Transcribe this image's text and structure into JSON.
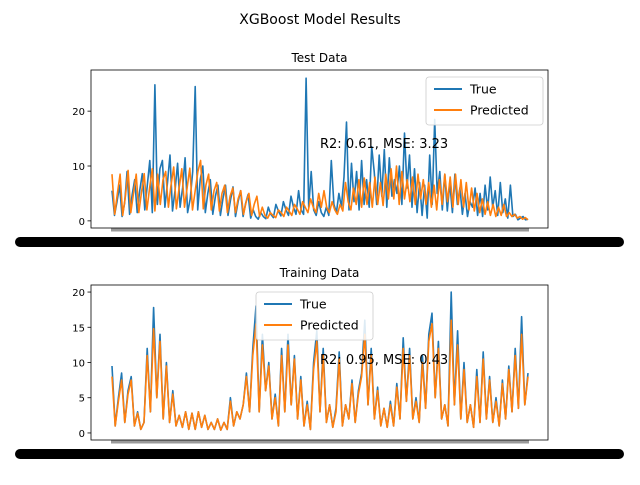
{
  "figure": {
    "suptitle": "XGBoost Model Results"
  },
  "colors": {
    "true": "#1f77b4",
    "predicted": "#ff7f0e"
  },
  "chart_data": [
    {
      "type": "line",
      "title": "Test Data",
      "xlabel": "",
      "ylabel": "",
      "ylim": [
        -1.3,
        27.5
      ],
      "yticks": [
        0,
        10,
        20
      ],
      "grid": false,
      "legend": "upper right",
      "annotation": "R2: 0.61, MSE: 3.23",
      "series": [
        {
          "name": "True",
          "color_key": "true",
          "values": [
            5.5,
            1.0,
            3.5,
            6.5,
            0.8,
            3.2,
            9.0,
            1.2,
            4.8,
            7.5,
            1.5,
            5.5,
            8.6,
            2.0,
            6.5,
            11.0,
            1.5,
            24.8,
            3.0,
            9.5,
            11.0,
            2.5,
            7.0,
            12.0,
            1.8,
            5.5,
            10.5,
            2.5,
            6.0,
            11.5,
            1.5,
            4.0,
            9.0,
            24.5,
            2.0,
            7.5,
            10.0,
            1.5,
            5.0,
            7.5,
            1.2,
            4.5,
            6.5,
            1.0,
            4.0,
            6.5,
            1.0,
            3.8,
            6.2,
            0.8,
            3.5,
            5.5,
            0.8,
            3.2,
            4.8,
            0.5,
            2.0,
            0.8,
            0.3,
            1.5,
            0.8,
            0.4,
            2.5,
            1.2,
            0.6,
            3.0,
            1.8,
            0.9,
            3.5,
            2.0,
            1.0,
            4.5,
            2.5,
            1.2,
            5.5,
            2.0,
            1.2,
            26.0,
            2.5,
            9.0,
            2.0,
            1.0,
            3.5,
            1.5,
            0.8,
            2.5,
            1.0,
            11.0,
            3.0,
            1.5,
            5.0,
            2.5,
            8.0,
            18.0,
            2.0,
            10.5,
            3.5,
            9.0,
            2.0,
            11.0,
            3.0,
            7.5,
            2.5,
            13.5,
            9.0,
            3.0,
            12.0,
            4.5,
            13.0,
            2.5,
            11.5,
            4.5,
            7.5,
            5.0,
            10.0,
            3.0,
            16.0,
            6.0,
            12.0,
            2.5,
            9.5,
            1.5,
            7.0,
            1.0,
            6.5,
            0.5,
            12.0,
            3.0,
            18.5,
            5.0,
            9.0,
            2.0,
            8.5,
            1.8,
            7.0,
            1.5,
            8.5,
            3.0,
            6.0,
            1.2,
            5.0,
            0.8,
            3.5,
            2.5,
            6.0,
            1.0,
            5.0,
            0.8,
            6.5,
            2.0,
            8.0,
            2.5,
            5.5,
            1.0,
            7.0,
            1.5,
            4.0,
            0.5,
            6.5,
            0.8,
            1.2,
            0.2,
            0.5,
            0.8,
            0.2,
            0.3
          ]
        },
        {
          "name": "Predicted",
          "color_key": "predicted",
          "values": [
            8.5,
            1.2,
            5.0,
            8.5,
            1.0,
            4.5,
            9.2,
            1.5,
            5.0,
            8.5,
            1.5,
            5.2,
            8.6,
            2.0,
            6.0,
            9.5,
            1.8,
            8.5,
            3.0,
            7.5,
            9.0,
            2.5,
            6.5,
            9.8,
            2.2,
            6.0,
            9.5,
            2.5,
            6.0,
            9.6,
            2.0,
            5.5,
            9.0,
            11.0,
            2.2,
            6.5,
            8.5,
            2.0,
            5.5,
            7.0,
            1.8,
            5.0,
            6.5,
            1.5,
            4.5,
            6.0,
            1.5,
            4.0,
            5.5,
            1.2,
            3.5,
            5.0,
            1.0,
            3.0,
            4.5,
            0.8,
            2.5,
            1.0,
            0.5,
            1.5,
            1.0,
            0.6,
            2.0,
            1.5,
            0.8,
            2.5,
            1.8,
            1.0,
            3.0,
            2.2,
            1.2,
            3.5,
            2.5,
            1.5,
            4.0,
            2.5,
            1.5,
            5.0,
            2.5,
            5.5,
            2.5,
            1.5,
            3.5,
            2.0,
            1.2,
            3.0,
            1.8,
            7.0,
            3.5,
            2.0,
            6.0,
            3.0,
            7.5,
            2.5,
            7.8,
            3.0,
            7.0,
            2.5,
            8.0,
            3.0,
            7.0,
            2.8,
            8.5,
            4.0,
            9.5,
            4.0,
            10.0,
            3.0,
            9.0,
            4.0,
            7.5,
            3.5,
            8.0,
            3.0,
            8.5,
            4.0,
            7.5,
            3.0,
            7.0,
            2.5,
            6.5,
            2.0,
            7.5,
            3.0,
            8.5,
            3.5,
            8.0,
            2.5,
            8.5,
            3.0,
            7.5,
            2.5,
            7.0,
            2.0,
            6.0,
            1.8,
            5.0,
            1.5,
            4.0,
            1.2,
            3.5,
            1.0,
            3.0,
            0.8,
            2.5,
            1.0,
            3.0,
            0.8,
            1.5,
            0.8,
            1.2,
            0.5,
            0.8,
            0.3,
            0.6,
            0.2
          ]
        }
      ]
    },
    {
      "type": "line",
      "title": "Training Data",
      "xlabel": "",
      "ylabel": "",
      "ylim": [
        -1.0,
        21.0
      ],
      "yticks": [
        0,
        5,
        10,
        15,
        20
      ],
      "grid": false,
      "legend": "upper center",
      "annotation": "R2: 0.95, MSE: 0.43",
      "series": [
        {
          "name": "True",
          "color_key": "true",
          "values": [
            9.5,
            1.0,
            5.0,
            8.5,
            1.5,
            6.0,
            8.0,
            1.0,
            3.0,
            0.5,
            1.5,
            12.0,
            3.0,
            17.8,
            5.0,
            14.0,
            2.0,
            10.0,
            1.5,
            6.0,
            1.0,
            2.5,
            0.8,
            3.0,
            0.5,
            2.8,
            0.5,
            3.0,
            0.8,
            2.5,
            0.5,
            1.5,
            0.5,
            2.0,
            0.4,
            1.5,
            0.5,
            5.0,
            1.0,
            3.0,
            2.0,
            4.0,
            8.5,
            3.0,
            12.0,
            18.0,
            3.0,
            14.0,
            6.0,
            10.0,
            2.0,
            5.5,
            1.0,
            12.0,
            3.0,
            14.0,
            4.0,
            11.0,
            2.0,
            8.0,
            1.0,
            4.5,
            0.5,
            10.0,
            14.5,
            3.0,
            12.0,
            1.5,
            4.0,
            0.8,
            3.5,
            11.5,
            1.0,
            4.0,
            2.0,
            7.5,
            1.5,
            6.0,
            8.5,
            16.0,
            4.0,
            12.0,
            2.0,
            6.5,
            1.0,
            3.5,
            0.8,
            4.5,
            1.0,
            7.0,
            2.0,
            13.5,
            4.5,
            12.0,
            2.0,
            5.0,
            1.5,
            11.0,
            3.5,
            14.0,
            17.0,
            5.0,
            13.0,
            2.0,
            4.0,
            1.0,
            20.0,
            4.0,
            14.5,
            2.0,
            10.0,
            1.5,
            4.0,
            0.8,
            9.0,
            1.5,
            11.5,
            2.0,
            8.0,
            1.5,
            5.0,
            1.0,
            7.5,
            2.0,
            9.5,
            3.0,
            12.0,
            3.5,
            16.5,
            4.0,
            8.5
          ]
        },
        {
          "name": "Predicted",
          "color_key": "predicted",
          "values": [
            8.0,
            1.0,
            4.5,
            7.5,
            1.5,
            5.5,
            7.5,
            1.0,
            2.8,
            0.5,
            1.5,
            11.0,
            3.0,
            14.8,
            5.0,
            13.0,
            2.0,
            9.5,
            1.5,
            5.5,
            1.0,
            2.5,
            0.8,
            3.0,
            0.5,
            2.8,
            0.5,
            3.0,
            0.8,
            2.5,
            0.5,
            1.5,
            0.5,
            2.0,
            0.4,
            1.5,
            0.5,
            4.5,
            1.0,
            3.0,
            2.0,
            4.0,
            8.0,
            3.0,
            11.0,
            15.5,
            3.0,
            12.5,
            6.0,
            9.5,
            2.0,
            5.0,
            1.0,
            11.0,
            3.0,
            12.5,
            4.0,
            10.5,
            2.0,
            7.5,
            1.0,
            4.0,
            0.5,
            9.0,
            13.0,
            3.0,
            11.0,
            1.5,
            4.0,
            0.8,
            3.0,
            10.5,
            1.0,
            4.0,
            2.0,
            7.0,
            1.5,
            5.5,
            8.0,
            14.0,
            4.0,
            11.0,
            2.0,
            6.0,
            1.0,
            3.5,
            0.8,
            4.0,
            1.0,
            6.5,
            2.0,
            12.0,
            4.5,
            11.0,
            2.0,
            4.5,
            1.5,
            10.0,
            3.5,
            13.0,
            15.5,
            5.0,
            12.0,
            2.0,
            4.0,
            1.0,
            16.0,
            4.0,
            12.5,
            2.0,
            9.0,
            1.5,
            4.0,
            0.8,
            8.0,
            1.5,
            10.5,
            2.0,
            7.5,
            1.5,
            4.5,
            1.0,
            7.0,
            2.0,
            9.0,
            3.0,
            11.0,
            3.5,
            14.0,
            4.0,
            8.0
          ]
        }
      ]
    }
  ]
}
